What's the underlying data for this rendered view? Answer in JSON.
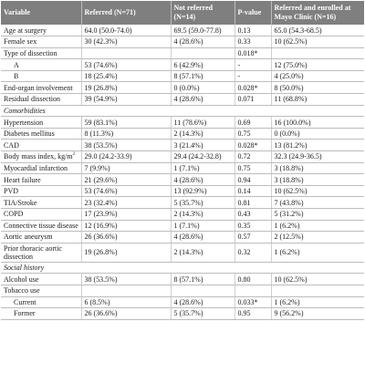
{
  "headers": [
    "Variable",
    "Referred (N=71)",
    "Not referred (N=14)",
    "P-value",
    "Referred and enrolled at Mayo Clinic (N=16)"
  ],
  "rows": [
    {
      "type": "row",
      "cells": [
        "Age at surgery",
        "64.0 (50.0-74.0)",
        "69.5 (59.0-77.8)",
        "0.13",
        "65.0 (54.3-68.5)"
      ]
    },
    {
      "type": "row",
      "cells": [
        "Female sex",
        "30 (42.3%)",
        "4 (28.6%)",
        "0.33",
        "10 (62.5%)"
      ]
    },
    {
      "type": "row",
      "cells": [
        "Type of dissection",
        "",
        "",
        "0.018*",
        ""
      ]
    },
    {
      "type": "sub",
      "cells": [
        "A",
        "53 (74.6%)",
        "6 (42.9%)",
        "-",
        "12 (75.0%)"
      ]
    },
    {
      "type": "sub",
      "cells": [
        "B",
        "18 (25.4%)",
        "8 (57.1%)",
        "-",
        "4 (25.0%)"
      ]
    },
    {
      "type": "row",
      "cells": [
        "End-organ involvement",
        "19 (26.8%)",
        "0 (0.0%)",
        "0.028*",
        "8 (50.0%)"
      ]
    },
    {
      "type": "row",
      "cells": [
        "Residual dissection",
        "39 (54.9%)",
        "4 (28.6%)",
        "0.071",
        "11 (68.8%)"
      ]
    },
    {
      "type": "section",
      "label": "Comorbidities"
    },
    {
      "type": "row",
      "cells": [
        "Hypertension",
        "59 (83.1%)",
        "11 (78.6%)",
        "0.69",
        "16 (100.0%)"
      ]
    },
    {
      "type": "row",
      "cells": [
        "Diabetes mellitus",
        "8 (11.3%)",
        "2 (14.3%)",
        "0.75",
        "0 (0.0%)"
      ]
    },
    {
      "type": "row",
      "cells": [
        "CAD",
        "38 (53.5%)",
        "3 (21.4%)",
        "0.028*",
        "13 (81.2%)"
      ]
    },
    {
      "type": "row",
      "bmi": true,
      "cells": [
        "Body mass index, kg/m",
        "29.0 (24.2-33.9)",
        "29.4 (24.2-32.8)",
        "0.72",
        "32.3 (24.9-36.5)"
      ],
      "sup": "2"
    },
    {
      "type": "row",
      "cells": [
        "Myocardial infarction",
        "7 (9.9%)",
        "1 (7.1%)",
        "0.75",
        "3 (18.8%)"
      ]
    },
    {
      "type": "row",
      "cells": [
        "Heart failure",
        "21 (29.6%)",
        "4 (28.6%)",
        "0.94",
        "3 (18.8%)"
      ]
    },
    {
      "type": "row",
      "cells": [
        "PVD",
        "53 (74.6%)",
        "13 (92.9%)",
        "0.14",
        "10 (62.5%)"
      ]
    },
    {
      "type": "row",
      "cells": [
        "TIA/Stroke",
        "23 (32.4%)",
        "5 (35.7%)",
        "0.81",
        "7 (43.8%)"
      ]
    },
    {
      "type": "row",
      "cells": [
        "COPD",
        "17 (23.9%)",
        "2 (14.3%)",
        "0.43",
        "5 (31.2%)"
      ]
    },
    {
      "type": "row",
      "cells": [
        "Connective tissue disease",
        "12 (16.9%)",
        "1 (7.1%)",
        "0.35",
        "1 (6.2%)"
      ]
    },
    {
      "type": "row",
      "cells": [
        "Aortic aneurysm",
        "26 (36.6%)",
        "4 (28.6%)",
        "0.57",
        "2 (12.5%)"
      ]
    },
    {
      "type": "tall",
      "cells": [
        "Prior thoracic aortic dissection",
        "19 (26.8%)",
        "2 (14.3%)",
        "0.32",
        "1 (6.2%)"
      ]
    },
    {
      "type": "section",
      "label": "Social history"
    },
    {
      "type": "row",
      "cells": [
        "Alcohol use",
        "38 (53.5%)",
        "8 (57.1%)",
        "0.80",
        "10 (62.5%)"
      ]
    },
    {
      "type": "row",
      "cells": [
        "Tobacco use",
        "",
        "",
        "",
        ""
      ]
    },
    {
      "type": "sub",
      "cells": [
        "Current",
        "6 (8.5%)",
        "4 (28.6%)",
        "0.033*",
        "1 (6.2%)"
      ]
    },
    {
      "type": "sub",
      "cells": [
        "Former",
        "26 (36.6%)",
        "5 (35.7%)",
        "0.95",
        "9 (56.2%)"
      ]
    }
  ]
}
